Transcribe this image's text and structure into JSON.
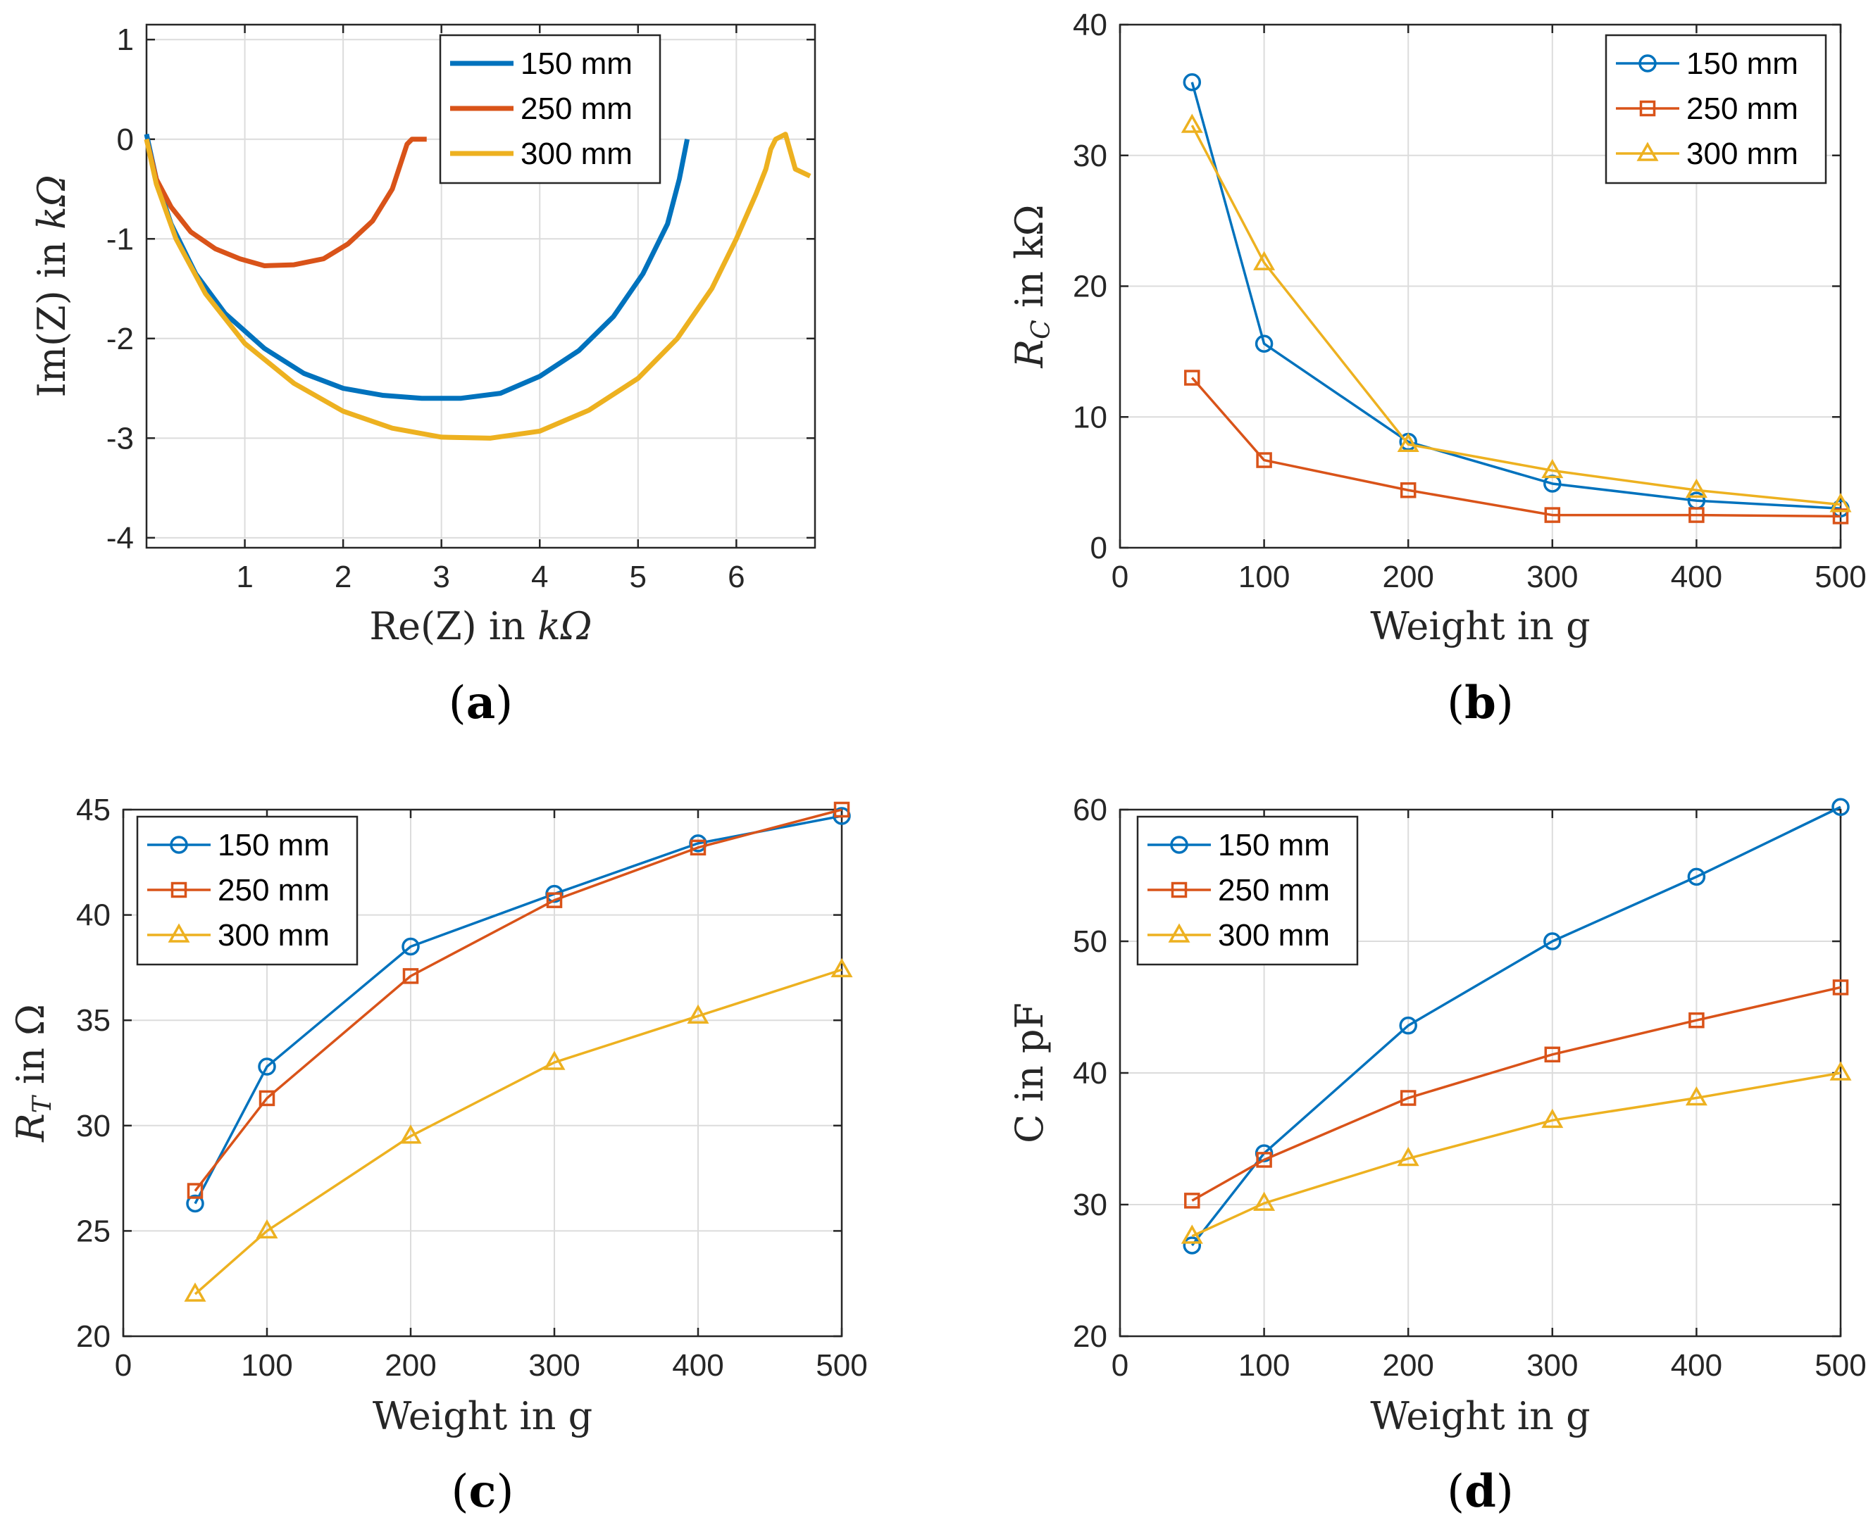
{
  "colors": {
    "series_150": "#0072BD",
    "series_250": "#D95319",
    "series_300": "#EDB120"
  },
  "chart_data": [
    {
      "panel": "(a)",
      "panel_letter": "a",
      "type": "line",
      "xlabel_pre": "Re(Z) in ",
      "xlabel_var": "kΩ",
      "ylabel_pre": "Im(Z) in ",
      "ylabel_var": "kΩ",
      "xlim": [
        0,
        6.8
      ],
      "ylim": [
        -4.1,
        1.15
      ],
      "xticks": [
        1,
        2,
        3,
        4,
        5,
        6
      ],
      "yticks": [
        -4,
        -3,
        -2,
        -1,
        0,
        1
      ],
      "grid": true,
      "legend_position": "top-right",
      "series": [
        {
          "name": "150 mm",
          "color_key": "series_150",
          "marker": "none",
          "x": [
            0.0,
            0.1,
            0.25,
            0.5,
            0.8,
            1.2,
            1.6,
            2.0,
            2.4,
            2.8,
            3.2,
            3.6,
            4.0,
            4.4,
            4.75,
            5.05,
            5.3,
            5.42,
            5.48,
            5.5
          ],
          "y": [
            0.05,
            -0.4,
            -0.85,
            -1.35,
            -1.75,
            -2.1,
            -2.35,
            -2.5,
            -2.57,
            -2.6,
            -2.6,
            -2.55,
            -2.38,
            -2.12,
            -1.78,
            -1.35,
            -0.85,
            -0.4,
            -0.1,
            0.0
          ]
        },
        {
          "name": "250 mm",
          "color_key": "series_250",
          "marker": "none",
          "x": [
            0.0,
            0.1,
            0.25,
            0.45,
            0.7,
            0.95,
            1.2,
            1.5,
            1.8,
            2.05,
            2.3,
            2.5,
            2.6,
            2.65,
            2.7,
            2.85
          ],
          "y": [
            0.0,
            -0.4,
            -0.68,
            -0.93,
            -1.1,
            -1.2,
            -1.27,
            -1.26,
            -1.2,
            -1.05,
            -0.82,
            -0.5,
            -0.2,
            -0.05,
            0.0,
            0.0
          ]
        },
        {
          "name": "300 mm",
          "color_key": "series_300",
          "marker": "none",
          "x": [
            0.0,
            0.1,
            0.3,
            0.6,
            1.0,
            1.5,
            2.0,
            2.5,
            3.0,
            3.5,
            4.0,
            4.5,
            5.0,
            5.4,
            5.75,
            6.0,
            6.2,
            6.3,
            6.35,
            6.4,
            6.5,
            6.6,
            6.75
          ],
          "y": [
            0.0,
            -0.45,
            -1.0,
            -1.55,
            -2.05,
            -2.45,
            -2.73,
            -2.9,
            -2.99,
            -3.0,
            -2.93,
            -2.72,
            -2.4,
            -2.0,
            -1.5,
            -1.0,
            -0.55,
            -0.3,
            -0.1,
            0.0,
            0.05,
            -0.3,
            -0.37
          ]
        }
      ]
    },
    {
      "panel": "(b)",
      "panel_letter": "b",
      "type": "line",
      "xlabel": "Weight in g",
      "ylabel_var": "R",
      "ylabel_sub": "C",
      "ylabel_rest": " in kΩ",
      "xlim": [
        0,
        500
      ],
      "ylim": [
        0,
        40
      ],
      "xticks": [
        0,
        100,
        200,
        300,
        400,
        500
      ],
      "yticks": [
        0,
        10,
        20,
        30,
        40
      ],
      "grid": true,
      "legend_position": "top-right",
      "series": [
        {
          "name": "150 mm",
          "color_key": "series_150",
          "marker": "circle",
          "x": [
            50,
            100,
            200,
            300,
            400,
            500
          ],
          "y": [
            35.6,
            15.6,
            8.1,
            4.9,
            3.6,
            3.0
          ]
        },
        {
          "name": "250 mm",
          "color_key": "series_250",
          "marker": "square",
          "x": [
            50,
            100,
            200,
            300,
            400,
            500
          ],
          "y": [
            13.0,
            6.7,
            4.4,
            2.5,
            2.5,
            2.4
          ]
        },
        {
          "name": "300 mm",
          "color_key": "series_300",
          "marker": "triangle",
          "x": [
            50,
            100,
            200,
            300,
            400,
            500
          ],
          "y": [
            32.3,
            21.8,
            7.9,
            5.9,
            4.4,
            3.3
          ]
        }
      ]
    },
    {
      "panel": "(c)",
      "panel_letter": "c",
      "type": "line",
      "xlabel": "Weight in g",
      "ylabel_var": "R",
      "ylabel_sub": "T",
      "ylabel_rest": " in Ω",
      "xlim": [
        0,
        500
      ],
      "ylim": [
        20,
        45
      ],
      "xticks": [
        0,
        100,
        200,
        300,
        400,
        500
      ],
      "yticks": [
        20,
        25,
        30,
        35,
        40,
        45
      ],
      "grid": true,
      "legend_position": "top-left",
      "series": [
        {
          "name": "150 mm",
          "color_key": "series_150",
          "marker": "circle",
          "x": [
            50,
            100,
            200,
            300,
            400,
            500
          ],
          "y": [
            26.3,
            32.8,
            38.5,
            41.0,
            43.4,
            44.7
          ]
        },
        {
          "name": "250 mm",
          "color_key": "series_250",
          "marker": "square",
          "x": [
            50,
            100,
            200,
            300,
            400,
            500
          ],
          "y": [
            26.9,
            31.3,
            37.1,
            40.7,
            43.2,
            45.0
          ]
        },
        {
          "name": "300 mm",
          "color_key": "series_300",
          "marker": "triangle",
          "x": [
            50,
            100,
            200,
            300,
            400,
            500
          ],
          "y": [
            22.0,
            25.0,
            29.5,
            33.0,
            35.2,
            37.4
          ]
        }
      ]
    },
    {
      "panel": "(d)",
      "panel_letter": "d",
      "type": "line",
      "xlabel": "Weight in g",
      "ylabel": "C in pF",
      "xlim": [
        0,
        500
      ],
      "ylim": [
        20,
        60
      ],
      "xticks": [
        0,
        100,
        200,
        300,
        400,
        500
      ],
      "yticks": [
        20,
        30,
        40,
        50,
        60
      ],
      "grid": true,
      "legend_position": "top-left",
      "series": [
        {
          "name": "150 mm",
          "color_key": "series_150",
          "marker": "circle",
          "x": [
            50,
            100,
            200,
            300,
            400,
            500
          ],
          "y": [
            26.9,
            33.9,
            43.6,
            50.0,
            54.9,
            60.2
          ]
        },
        {
          "name": "250 mm",
          "color_key": "series_250",
          "marker": "square",
          "x": [
            50,
            100,
            200,
            300,
            400,
            500
          ],
          "y": [
            30.3,
            33.4,
            38.1,
            41.4,
            44.0,
            46.5
          ]
        },
        {
          "name": "300 mm",
          "color_key": "series_300",
          "marker": "triangle",
          "x": [
            50,
            100,
            200,
            300,
            400,
            500
          ],
          "y": [
            27.6,
            30.1,
            33.5,
            36.4,
            38.1,
            40.0
          ]
        }
      ]
    }
  ]
}
